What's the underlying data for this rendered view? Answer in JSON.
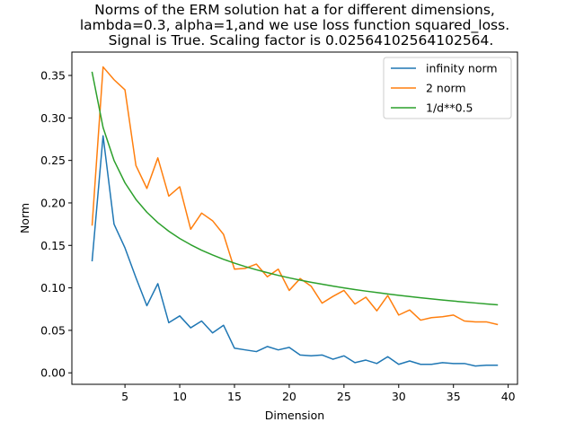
{
  "chart_data": {
    "type": "line",
    "title": [
      "Norms of the ERM solution hat a for different dimensions,",
      "lambda=0.3, alpha=1,and we use loss function squared_loss.",
      "Signal is True. Scaling factor is 0.02564102564102564."
    ],
    "xlabel": "Dimension",
    "ylabel": "Norm",
    "xlim": [
      0.15,
      40.85
    ],
    "ylim": [
      -0.0135,
      0.3775
    ],
    "xticks": [
      5,
      10,
      15,
      20,
      25,
      30,
      35,
      40
    ],
    "yticks": [
      0.0,
      0.05,
      0.1,
      0.15,
      0.2,
      0.25,
      0.3,
      0.35
    ],
    "ytick_labels": [
      "0.00",
      "0.05",
      "0.10",
      "0.15",
      "0.20",
      "0.25",
      "0.30",
      "0.35"
    ],
    "legend_position": "top-right",
    "x": [
      2,
      3,
      4,
      5,
      6,
      7,
      8,
      9,
      10,
      11,
      12,
      13,
      14,
      15,
      16,
      17,
      18,
      19,
      20,
      21,
      22,
      23,
      24,
      25,
      26,
      27,
      28,
      29,
      30,
      31,
      32,
      33,
      34,
      35,
      36,
      37,
      38,
      39
    ],
    "series": [
      {
        "name": "infinity norm",
        "color": "#1f77b4",
        "values": [
          0.132,
          0.279,
          0.175,
          0.147,
          0.112,
          0.079,
          0.105,
          0.059,
          0.067,
          0.053,
          0.061,
          0.047,
          0.056,
          0.029,
          0.027,
          0.025,
          0.031,
          0.027,
          0.03,
          0.021,
          0.02,
          0.021,
          0.016,
          0.02,
          0.012,
          0.015,
          0.011,
          0.019,
          0.01,
          0.014,
          0.01,
          0.01,
          0.012,
          0.011,
          0.011,
          0.008,
          0.009,
          0.009
        ]
      },
      {
        "name": "2 norm",
        "color": "#ff7f0e",
        "values": [
          0.174,
          0.36,
          0.345,
          0.333,
          0.244,
          0.217,
          0.253,
          0.208,
          0.219,
          0.169,
          0.188,
          0.179,
          0.163,
          0.122,
          0.123,
          0.128,
          0.113,
          0.122,
          0.097,
          0.111,
          0.102,
          0.082,
          0.09,
          0.097,
          0.081,
          0.089,
          0.073,
          0.091,
          0.068,
          0.074,
          0.062,
          0.065,
          0.066,
          0.068,
          0.061,
          0.06,
          0.06,
          0.057
        ]
      },
      {
        "name": "1/d**0.5",
        "color": "#2ca02c",
        "values": [
          0.3536,
          0.2887,
          0.25,
          0.2236,
          0.2041,
          0.189,
          0.1768,
          0.1667,
          0.1581,
          0.1508,
          0.1443,
          0.1387,
          0.1336,
          0.1291,
          0.125,
          0.1213,
          0.1179,
          0.1147,
          0.1118,
          0.1091,
          0.1066,
          0.1043,
          0.1021,
          0.1,
          0.098,
          0.0962,
          0.0945,
          0.0928,
          0.0913,
          0.0898,
          0.0884,
          0.087,
          0.0857,
          0.0845,
          0.0833,
          0.0822,
          0.0811,
          0.0801
        ]
      }
    ]
  }
}
